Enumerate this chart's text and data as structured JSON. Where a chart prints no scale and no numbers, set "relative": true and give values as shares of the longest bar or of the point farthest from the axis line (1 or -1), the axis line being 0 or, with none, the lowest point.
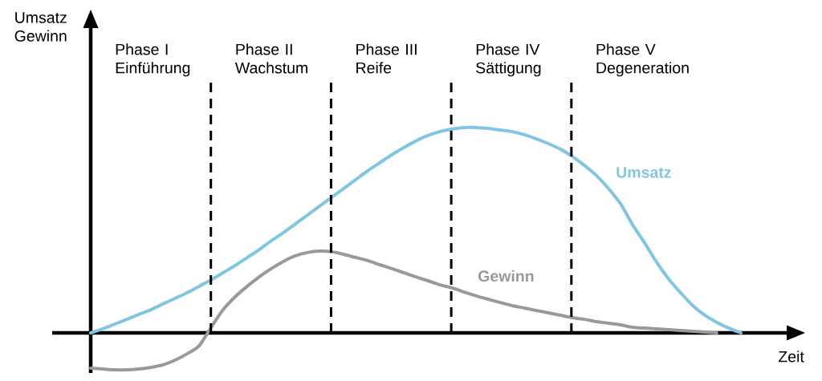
{
  "chart_data": {
    "type": "line",
    "relative": true,
    "xlabel": "Zeit",
    "grid": "x",
    "categories": [
      null,
      null,
      null,
      null,
      null,
      null,
      null,
      null,
      null,
      null,
      null,
      null,
      null,
      null,
      null,
      null,
      null,
      null,
      null,
      null,
      null,
      null,
      null,
      null,
      null,
      null,
      null,
      null,
      null,
      null,
      null,
      null,
      null,
      null,
      null,
      null,
      null,
      null,
      null,
      null,
      null,
      null,
      null,
      null,
      null,
      null,
      null,
      null,
      null,
      null,
      null,
      null,
      null,
      null,
      null
    ],
    "series": [
      {
        "name": "Umsatz",
        "color": "#80c6e2",
        "values": [
          0,
          0.02,
          0.043,
          0.066,
          0.09,
          0.113,
          0.141,
          0.168,
          0.195,
          0.227,
          0.258,
          0.293,
          0.328,
          0.367,
          0.406,
          0.449,
          0.488,
          0.531,
          0.574,
          0.617,
          0.66,
          0.703,
          0.746,
          0.789,
          0.828,
          0.867,
          0.902,
          0.934,
          0.961,
          0.98,
          0.992,
          1,
          1,
          0.996,
          0.988,
          0.98,
          0.965,
          0.945,
          0.922,
          0.895,
          0.859,
          0.816,
          0.766,
          0.703,
          0.629,
          0.527,
          0.438,
          0.344,
          0.262,
          0.195,
          0.133,
          0.086,
          0.051,
          0.023,
          0
        ]
      },
      {
        "name": "Gewinn",
        "color": "#999999",
        "values": [
          -0.172,
          -0.176,
          -0.18,
          -0.18,
          -0.176,
          -0.168,
          -0.156,
          -0.133,
          -0.102,
          -0.063,
          0.027,
          0.113,
          0.176,
          0.227,
          0.273,
          0.313,
          0.348,
          0.375,
          0.391,
          0.398,
          0.395,
          0.383,
          0.367,
          0.352,
          0.332,
          0.313,
          0.293,
          0.273,
          0.254,
          0.234,
          0.219,
          0.199,
          0.18,
          0.164,
          0.148,
          0.133,
          0.121,
          0.109,
          0.098,
          0.086,
          0.074,
          0.066,
          0.055,
          0.047,
          0.039,
          0.027,
          0.023,
          0.02,
          0.016,
          0.012,
          0.008,
          0.004,
          0,
          null,
          null
        ]
      }
    ],
    "annotations": [
      "Umsatz Gewinn",
      "Phase I Einführung",
      "Phase II Wachstum",
      "Phase III Reife",
      "Phase IV Sättigung",
      "Phase V Degeneration"
    ]
  }
}
